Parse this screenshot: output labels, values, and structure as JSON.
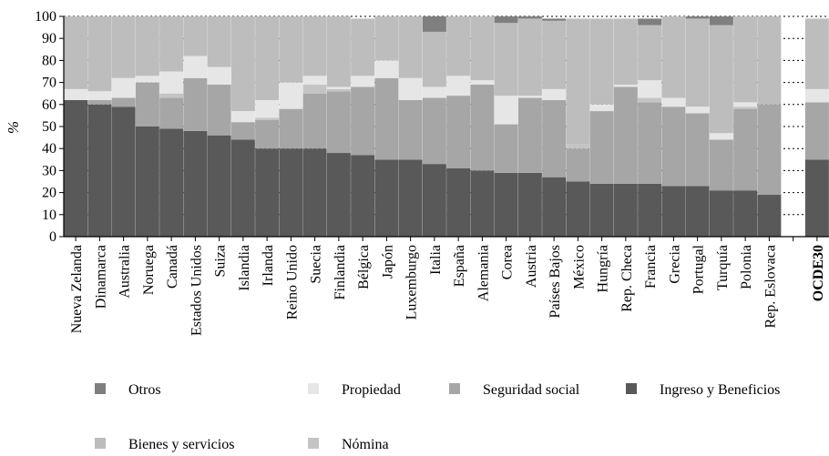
{
  "chart_data": {
    "type": "bar",
    "stacked": true,
    "ylabel": "%",
    "xlabel": "",
    "title": "",
    "ylim": [
      0,
      100
    ],
    "yticks": [
      0,
      10,
      20,
      30,
      40,
      50,
      60,
      70,
      80,
      90,
      100
    ],
    "grid": "dotted-horizontal",
    "legend_position": "bottom",
    "categories": [
      "Nueva Zelanda",
      "Dinamarca",
      "Australia",
      "Noruega",
      "Canadá",
      "Estados Unidos",
      "Suiza",
      "Islandia",
      "Irlanda",
      "Reino Unido",
      "Suecia",
      "Finlandia",
      "Bélgica",
      "Japón",
      "Luxemburgo",
      "Italia",
      "España",
      "Alemania",
      "Corea",
      "Austria",
      "Países Bajos",
      "México",
      "Hungría",
      "Rep. Checa",
      "Francia",
      "Grecia",
      "Portugal",
      "Turquía",
      "Polonia",
      "Rep. Eslovaca",
      "",
      "OCDE30"
    ],
    "bold_categories": [
      "OCDE30"
    ],
    "series": [
      {
        "name": "Ingreso y Beneficios",
        "color": "#595959",
        "values": [
          62,
          60,
          59,
          50,
          49,
          48,
          46,
          44,
          40,
          40,
          40,
          38,
          37,
          35,
          35,
          33,
          31,
          30,
          29,
          29,
          27,
          25,
          24,
          24,
          24,
          23,
          23,
          21,
          21,
          19,
          null,
          35
        ]
      },
      {
        "name": "Seguridad social",
        "color": "#a6a6a6",
        "values": [
          0,
          2,
          4,
          20,
          14,
          24,
          23,
          8,
          13,
          18,
          25,
          28,
          31,
          37,
          27,
          30,
          33,
          39,
          22,
          34,
          35,
          15,
          33,
          44,
          37,
          36,
          33,
          23,
          37,
          41,
          null,
          26
        ]
      },
      {
        "name": "Nómina",
        "color": "#c4c4c4",
        "values": [
          0,
          0,
          0,
          0,
          2,
          0,
          0,
          0,
          1,
          0,
          4,
          1,
          0,
          0,
          0,
          0,
          0,
          0,
          0,
          0,
          0,
          2,
          0,
          0,
          2,
          0,
          0,
          0,
          1,
          0,
          null,
          0
        ]
      },
      {
        "name": "Propiedad",
        "color": "#e6e6e6",
        "values": [
          5,
          4,
          9,
          3,
          10,
          10,
          8,
          5,
          8,
          12,
          4,
          1,
          5,
          8,
          10,
          5,
          9,
          2,
          13,
          1,
          5,
          0,
          3,
          1,
          8,
          4,
          3,
          3,
          2,
          0,
          null,
          6
        ]
      },
      {
        "name": "Bienes y servicios",
        "color": "#bdbdbd",
        "values": [
          33,
          34,
          28,
          27,
          25,
          18,
          23,
          43,
          38,
          30,
          27,
          32,
          26,
          20,
          28,
          25,
          27,
          29,
          33,
          35,
          31,
          57,
          39,
          30,
          25,
          37,
          40,
          49,
          39,
          40,
          null,
          32
        ]
      },
      {
        "name": "Otros",
        "color": "#7f7f7f",
        "values": [
          0,
          0,
          0,
          0,
          0,
          0,
          0,
          0,
          0,
          0,
          0,
          0,
          0,
          0,
          0,
          7,
          0,
          0,
          3,
          1,
          1,
          0,
          0,
          0,
          3,
          0,
          1,
          4,
          0,
          0,
          null,
          0
        ]
      }
    ],
    "legend": [
      {
        "name": "Otros",
        "color": "#7f7f7f"
      },
      {
        "name": "Propiedad",
        "color": "#e6e6e6"
      },
      {
        "name": "Seguridad social",
        "color": "#a6a6a6"
      },
      {
        "name": "Ingreso y Beneficios",
        "color": "#595959"
      },
      {
        "name": "Bienes y servicios",
        "color": "#bdbdbd"
      },
      {
        "name": "Nómina",
        "color": "#c4c4c4"
      }
    ]
  }
}
